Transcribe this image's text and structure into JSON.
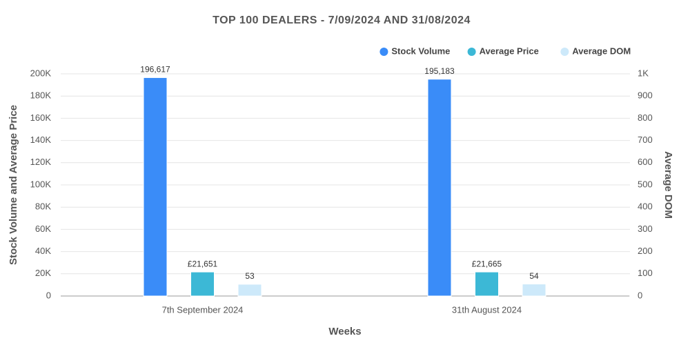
{
  "chart_data": {
    "type": "bar",
    "title": "TOP 100 DEALERS - 7/09/2024 AND 31/08/2024",
    "x_label": "Weeks",
    "y_label": "Stock Volume and Average Price",
    "y2_label": "Average DOM",
    "categories": [
      "7th September 2024",
      "31th August 2024"
    ],
    "series": [
      {
        "name": "Stock Volume",
        "color": "#3a8cf8",
        "values": [
          196617,
          195183
        ],
        "value_labels": [
          "196,617",
          "195,183"
        ]
      },
      {
        "name": "Average Price",
        "color": "#3cb8d6",
        "values": [
          21651,
          21665
        ],
        "value_labels": [
          "£21,651",
          "£21,665"
        ]
      },
      {
        "name": "Average DOM",
        "color": "#cde9fa",
        "axis": "y2",
        "values": [
          53,
          54
        ]
      }
    ],
    "ylim": [
      0,
      200000
    ],
    "yticks": [
      0,
      {
        "value": 20000,
        "label": "20K"
      },
      {
        "value": 40000,
        "label": "40K"
      },
      {
        "value": 60000,
        "label": "60K"
      },
      {
        "value": 80000,
        "label": "80K"
      },
      {
        "value": 100000,
        "label": "100K"
      },
      {
        "value": 120000,
        "label": "120K"
      },
      {
        "value": 140000,
        "label": "140K"
      },
      {
        "value": 160000,
        "label": "160K"
      },
      {
        "value": 180000,
        "label": "180K"
      },
      {
        "value": 200000,
        "label": "200K"
      }
    ],
    "y2lim": [
      0,
      1000
    ],
    "y2ticks": [
      0,
      100,
      200,
      300,
      400,
      500,
      600,
      700,
      800,
      900,
      {
        "value": 1000,
        "label": "1K"
      }
    ],
    "grid": true,
    "legend": "top-right"
  }
}
